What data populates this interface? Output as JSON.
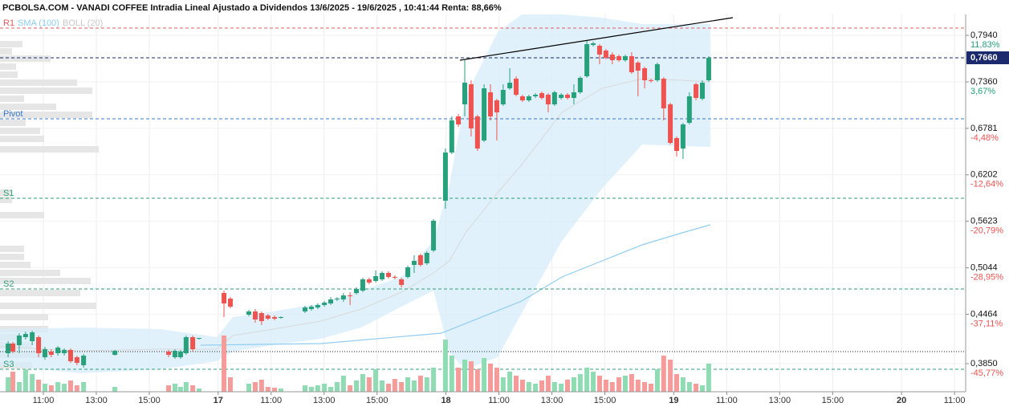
{
  "chart_data": {
    "type": "candlestick",
    "title": "PCBOLSA.COM - VANADI COFFEE Intradia Lineal Ajustado a Dividendos 13/6/2025 - 19/6/2025 , 10:41:44 Renta: 88,66%",
    "up_color": "#26a17b",
    "down_color": "#ef5350",
    "volume_up_color": "#8fdcb4",
    "volume_down_color": "#f59c9a",
    "grid": true,
    "xlim": [
      0.364,
      36.82
    ],
    "xticks": [
      {
        "value": 2,
        "label": "11:00"
      },
      {
        "value": 4,
        "label": "13:00"
      },
      {
        "value": 6,
        "label": "15:00"
      },
      {
        "value": 8.6,
        "label": "17"
      },
      {
        "value": 10.6,
        "label": "11:00"
      },
      {
        "value": 12.6,
        "label": "13:00"
      },
      {
        "value": 14.6,
        "label": "15:00"
      },
      {
        "value": 17.2,
        "label": "18"
      },
      {
        "value": 19.2,
        "label": "11:00"
      },
      {
        "value": 21.2,
        "label": "13:00"
      },
      {
        "value": 23.2,
        "label": "15:00"
      },
      {
        "value": 25.8,
        "label": "19"
      },
      {
        "value": 27.8,
        "label": "11:00"
      },
      {
        "value": 29.8,
        "label": "13:00"
      },
      {
        "value": 31.8,
        "label": "15:00"
      },
      {
        "value": 34.4,
        "label": "20"
      },
      {
        "value": 36.4,
        "label": "11:00"
      }
    ],
    "ylim": [
      0.35,
      0.826
    ],
    "yticks": [
      {
        "value": 0.794,
        "label": "0,7940"
      },
      {
        "value": 0.736,
        "label": "0,7360"
      },
      {
        "value": 0.6781,
        "label": "0,6781"
      },
      {
        "value": 0.6202,
        "label": "0,6202"
      },
      {
        "value": 0.5623,
        "label": "0,5623"
      },
      {
        "value": 0.5044,
        "label": "0,5044"
      },
      {
        "value": 0.4464,
        "label": "0,4464"
      },
      {
        "value": 0.385,
        "label": "0,3850"
      }
    ],
    "ytick_percent": [
      {
        "value": 11.83,
        "label": "11,83%"
      },
      {
        "value": 3.67,
        "label": "3,67%"
      },
      {
        "value": -4.48,
        "label": "-4,48%"
      },
      {
        "value": -12.64,
        "label": "-12,64%"
      },
      {
        "value": -20.79,
        "label": "-20,79%"
      },
      {
        "value": -28.95,
        "label": "-28,95%"
      },
      {
        "value": -37.11,
        "label": "-37,11%"
      },
      {
        "value": -45.77,
        "label": "-45,77%"
      }
    ],
    "x": [
      0.67,
      0.85,
      1.09,
      1.33,
      1.58,
      1.82,
      2.06,
      2.3,
      2.55,
      2.79,
      3.03,
      3.27,
      3.52,
      4.7,
      6.73,
      6.97,
      7.18,
      7.39,
      7.64,
      7.88,
      8.82,
      9.06,
      9.76,
      10.0,
      10.24,
      10.48,
      10.73,
      10.97,
      11.88,
      12.12,
      12.36,
      12.61,
      12.85,
      13.09,
      13.33,
      13.58,
      13.82,
      14.06,
      14.3,
      14.55,
      14.79,
      15.03,
      15.27,
      15.52,
      15.76,
      16.0,
      16.24,
      16.48,
      16.73,
      17.18,
      17.42,
      17.67,
      17.91,
      18.15,
      18.39,
      18.64,
      18.88,
      19.12,
      19.36,
      19.61,
      19.85,
      20.09,
      20.33,
      20.58,
      20.82,
      21.06,
      21.3,
      21.55,
      21.79,
      22.03,
      22.27,
      22.52,
      22.76,
      23.0,
      23.24,
      23.48,
      23.73,
      23.97,
      24.21,
      24.45,
      24.7,
      24.94,
      25.18,
      25.42,
      25.67,
      25.91,
      26.15,
      26.39,
      26.64,
      26.88,
      27.12
    ],
    "open": [
      0.398,
      0.41,
      0.408,
      0.418,
      0.413,
      0.418,
      0.393,
      0.4,
      0.398,
      0.398,
      0.402,
      0.393,
      0.383,
      0.396,
      0.4,
      0.393,
      0.393,
      0.398,
      0.418,
      0.416,
      0.473,
      0.466,
      0.446,
      0.45,
      0.448,
      0.445,
      0.443,
      0.442,
      0.45,
      0.453,
      0.455,
      0.458,
      0.46,
      0.465,
      0.465,
      0.47,
      0.473,
      0.476,
      0.49,
      0.488,
      0.49,
      0.498,
      0.493,
      0.49,
      0.493,
      0.508,
      0.52,
      0.51,
      0.526,
      0.588,
      0.648,
      0.693,
      0.708,
      0.733,
      0.693,
      0.663,
      0.723,
      0.713,
      0.708,
      0.728,
      0.74,
      0.718,
      0.713,
      0.718,
      0.722,
      0.72,
      0.708,
      0.716,
      0.72,
      0.716,
      0.723,
      0.743,
      0.782,
      0.781,
      0.775,
      0.77,
      0.768,
      0.763,
      0.768,
      0.76,
      0.753,
      0.738,
      0.738,
      0.74,
      0.708,
      0.666,
      0.653,
      0.685,
      0.733,
      0.715,
      0.738
    ],
    "high": [
      0.413,
      0.412,
      0.423,
      0.425,
      0.426,
      0.42,
      0.406,
      0.403,
      0.407,
      0.404,
      0.404,
      0.395,
      0.397,
      0.402,
      0.402,
      0.403,
      0.402,
      0.42,
      0.42,
      0.417,
      0.476,
      0.468,
      0.452,
      0.453,
      0.45,
      0.447,
      0.445,
      0.444,
      0.457,
      0.458,
      0.46,
      0.463,
      0.468,
      0.468,
      0.473,
      0.474,
      0.48,
      0.492,
      0.492,
      0.501,
      0.5,
      0.5,
      0.495,
      0.492,
      0.507,
      0.52,
      0.522,
      0.525,
      0.565,
      0.653,
      0.693,
      0.696,
      0.763,
      0.738,
      0.695,
      0.733,
      0.733,
      0.715,
      0.733,
      0.753,
      0.743,
      0.72,
      0.72,
      0.722,
      0.724,
      0.722,
      0.725,
      0.722,
      0.722,
      0.733,
      0.743,
      0.788,
      0.786,
      0.783,
      0.777,
      0.773,
      0.77,
      0.77,
      0.773,
      0.762,
      0.755,
      0.74,
      0.76,
      0.742,
      0.71,
      0.668,
      0.685,
      0.723,
      0.735,
      0.738,
      0.768
    ],
    "low": [
      0.393,
      0.398,
      0.398,
      0.415,
      0.408,
      0.393,
      0.39,
      0.393,
      0.395,
      0.395,
      0.386,
      0.383,
      0.38,
      0.395,
      0.393,
      0.391,
      0.391,
      0.396,
      0.4,
      0.415,
      0.443,
      0.454,
      0.444,
      0.436,
      0.433,
      0.439,
      0.439,
      0.441,
      0.448,
      0.451,
      0.453,
      0.456,
      0.458,
      0.463,
      0.462,
      0.458,
      0.471,
      0.474,
      0.484,
      0.486,
      0.488,
      0.491,
      0.49,
      0.48,
      0.491,
      0.498,
      0.506,
      0.508,
      0.524,
      0.578,
      0.646,
      0.68,
      0.693,
      0.668,
      0.65,
      0.661,
      0.688,
      0.663,
      0.706,
      0.726,
      0.718,
      0.711,
      0.711,
      0.716,
      0.714,
      0.698,
      0.706,
      0.714,
      0.714,
      0.708,
      0.721,
      0.741,
      0.78,
      0.758,
      0.764,
      0.758,
      0.761,
      0.761,
      0.746,
      0.718,
      0.728,
      0.735,
      0.736,
      0.688,
      0.658,
      0.643,
      0.64,
      0.683,
      0.713,
      0.713,
      0.736
    ],
    "close": [
      0.41,
      0.4,
      0.42,
      0.422,
      0.424,
      0.398,
      0.403,
      0.396,
      0.405,
      0.402,
      0.388,
      0.386,
      0.395,
      0.401,
      0.396,
      0.401,
      0.4,
      0.418,
      0.403,
      0.417,
      0.46,
      0.456,
      0.45,
      0.44,
      0.438,
      0.441,
      0.441,
      0.443,
      0.455,
      0.456,
      0.458,
      0.461,
      0.465,
      0.466,
      0.47,
      0.469,
      0.478,
      0.49,
      0.486,
      0.494,
      0.498,
      0.493,
      0.492,
      0.483,
      0.505,
      0.513,
      0.508,
      0.523,
      0.563,
      0.648,
      0.688,
      0.683,
      0.735,
      0.678,
      0.653,
      0.728,
      0.693,
      0.698,
      0.726,
      0.735,
      0.72,
      0.713,
      0.718,
      0.72,
      0.716,
      0.708,
      0.723,
      0.72,
      0.716,
      0.723,
      0.741,
      0.783,
      0.784,
      0.77,
      0.766,
      0.763,
      0.763,
      0.768,
      0.748,
      0.75,
      0.738,
      0.737,
      0.758,
      0.703,
      0.66,
      0.65,
      0.683,
      0.718,
      0.716,
      0.735,
      0.766
    ],
    "volume": [
      18,
      25,
      12,
      28,
      22,
      15,
      10,
      8,
      12,
      10,
      14,
      8,
      12,
      6,
      8,
      10,
      6,
      12,
      8,
      4,
      70,
      18,
      10,
      12,
      15,
      6,
      5,
      4,
      8,
      6,
      8,
      10,
      6,
      12,
      20,
      8,
      14,
      22,
      18,
      28,
      14,
      10,
      16,
      12,
      18,
      14,
      20,
      18,
      30,
      65,
      45,
      30,
      40,
      38,
      28,
      42,
      35,
      30,
      18,
      25,
      20,
      15,
      12,
      10,
      14,
      20,
      12,
      10,
      15,
      18,
      22,
      30,
      25,
      20,
      15,
      12,
      18,
      20,
      22,
      15,
      12,
      10,
      28,
      45,
      40,
      22,
      18,
      12,
      10,
      8,
      35
    ],
    "volume_lim": [
      0,
      70
    ],
    "bollinger": {
      "name": "BOLL (20)",
      "color": "#a9a9a9",
      "fill": "#d6ecfa",
      "x": [
        0.36,
        3.39,
        6.42,
        8.55,
        9.15,
        10.67,
        12.48,
        14.0,
        15.52,
        16.73,
        17.33,
        17.94,
        19.15,
        20.06,
        21.58,
        23.09,
        24.61,
        26.12,
        27.18
      ],
      "upper": [
        0.428,
        0.43,
        0.428,
        0.418,
        0.443,
        0.45,
        0.46,
        0.476,
        0.493,
        0.538,
        0.608,
        0.718,
        0.798,
        0.82,
        0.82,
        0.816,
        0.808,
        0.808,
        0.808
      ],
      "middle": [
        0.406,
        0.401,
        0.403,
        0.403,
        0.42,
        0.428,
        0.438,
        0.453,
        0.474,
        0.498,
        0.513,
        0.548,
        0.598,
        0.633,
        0.698,
        0.728,
        0.74,
        0.738,
        0.736
      ],
      "lower": [
        0.383,
        0.373,
        0.378,
        0.388,
        0.4,
        0.408,
        0.416,
        0.43,
        0.456,
        0.476,
        0.398,
        0.378,
        0.393,
        0.448,
        0.538,
        0.603,
        0.658,
        0.656,
        0.655
      ]
    },
    "sma": {
      "name": "SMA (100)",
      "color": "#8fcdf0",
      "x": [
        7.94,
        12.48,
        17.03,
        20.06,
        21.58,
        23.09,
        24.61,
        26.12,
        27.18
      ],
      "values": [
        0.408,
        0.41,
        0.423,
        0.463,
        0.493,
        0.513,
        0.533,
        0.548,
        0.558
      ]
    },
    "trendline": {
      "color": "#000000",
      "x": [
        17.73,
        28.03
      ],
      "y": [
        0.763,
        0.816
      ]
    },
    "levels": [
      {
        "label": "R1",
        "value": 0.803,
        "color": "#e05b5b"
      },
      {
        "label": "Pivot",
        "value": 0.69,
        "color": "#3a78c9"
      },
      {
        "label": "S1",
        "value": 0.591,
        "color": "#2e9e74"
      },
      {
        "label": "S2",
        "value": 0.478,
        "color": "#2e9e74"
      },
      {
        "label": "S3",
        "value": 0.378,
        "color": "#2e9e74"
      }
    ],
    "prev_close": 0.4,
    "last": {
      "value": 0.766,
      "label": "0,7660"
    },
    "volume_profile": {
      "color": "#e6e6e6",
      "price": [
        0.783,
        0.774,
        0.765,
        0.755,
        0.745,
        0.735,
        0.725,
        0.715,
        0.705,
        0.695,
        0.685,
        0.675,
        0.665,
        0.652,
        0.598,
        0.589,
        0.57,
        0.528,
        0.518,
        0.508,
        0.498,
        0.488,
        0.473,
        0.457,
        0.443,
        0.428,
        0.418,
        0.408,
        0.396,
        0.383
      ],
      "size": [
        28,
        15,
        63,
        20,
        22,
        96,
        115,
        30,
        70,
        115,
        32,
        50,
        55,
        123,
        15,
        15,
        55,
        30,
        30,
        38,
        75,
        113,
        100,
        120,
        60,
        60,
        25,
        40,
        62,
        40
      ]
    }
  }
}
